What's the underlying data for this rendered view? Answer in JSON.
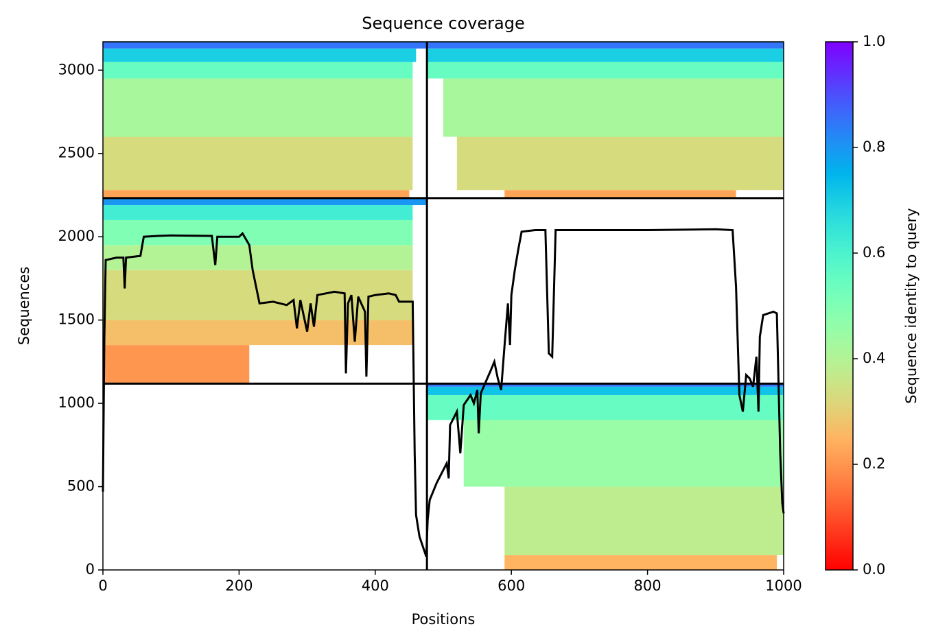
{
  "chart_data": {
    "type": "coverage",
    "title": "Sequence coverage",
    "xlabel": "Positions",
    "ylabel": "Sequences",
    "colorbar_label": "Sequence identity to query",
    "colormap": "rainbow_r",
    "xlim": [
      0,
      1000
    ],
    "ylim": [
      0,
      3170
    ],
    "xticks": [
      0,
      200,
      400,
      600,
      800,
      1000
    ],
    "yticks": [
      0,
      500,
      1000,
      1500,
      2000,
      2500,
      3000
    ],
    "clim": [
      0,
      1
    ],
    "cticks": [
      {
        "value": 0,
        "label": "0.0"
      },
      {
        "value": 0.2,
        "label": "0.2"
      },
      {
        "value": 0.4,
        "label": "0.4"
      },
      {
        "value": 0.6,
        "label": "0.6"
      },
      {
        "value": 0.8,
        "label": "0.8"
      },
      {
        "value": 1,
        "label": "1.0"
      }
    ],
    "dividers_x": [
      476
    ],
    "dividers_y": [
      1118,
      2232
    ],
    "bands": [
      {
        "x": [
          0,
          450
        ],
        "y": [
          2232,
          2280
        ],
        "identity": 0.22
      },
      {
        "x": [
          0,
          455
        ],
        "y": [
          2280,
          2600
        ],
        "identity": 0.33
      },
      {
        "x": [
          0,
          455
        ],
        "y": [
          2600,
          2950
        ],
        "identity": 0.42
      },
      {
        "x": [
          0,
          455
        ],
        "y": [
          2950,
          3050
        ],
        "identity": 0.55
      },
      {
        "x": [
          0,
          460
        ],
        "y": [
          3050,
          3130
        ],
        "identity": 0.7
      },
      {
        "x": [
          0,
          476
        ],
        "y": [
          3130,
          3170
        ],
        "identity": 0.85
      },
      {
        "x": [
          590,
          930
        ],
        "y": [
          2232,
          2280
        ],
        "identity": 0.22
      },
      {
        "x": [
          520,
          1000
        ],
        "y": [
          2280,
          2600
        ],
        "identity": 0.33
      },
      {
        "x": [
          500,
          1000
        ],
        "y": [
          2600,
          2950
        ],
        "identity": 0.42
      },
      {
        "x": [
          476,
          1000
        ],
        "y": [
          2950,
          3050
        ],
        "identity": 0.55
      },
      {
        "x": [
          476,
          1000
        ],
        "y": [
          3050,
          3130
        ],
        "identity": 0.7
      },
      {
        "x": [
          476,
          1000
        ],
        "y": [
          3130,
          3170
        ],
        "identity": 0.85
      },
      {
        "x": [
          0,
          215
        ],
        "y": [
          1118,
          1350
        ],
        "identity": 0.2
      },
      {
        "x": [
          0,
          455
        ],
        "y": [
          1350,
          1500
        ],
        "identity": 0.27
      },
      {
        "x": [
          0,
          455
        ],
        "y": [
          1500,
          1800
        ],
        "identity": 0.33
      },
      {
        "x": [
          0,
          455
        ],
        "y": [
          1800,
          1950
        ],
        "identity": 0.4
      },
      {
        "x": [
          0,
          455
        ],
        "y": [
          1950,
          2100
        ],
        "identity": 0.5
      },
      {
        "x": [
          0,
          455
        ],
        "y": [
          2100,
          2190
        ],
        "identity": 0.62
      },
      {
        "x": [
          0,
          476
        ],
        "y": [
          2190,
          2232
        ],
        "identity": 0.8
      },
      {
        "x": [
          590,
          990
        ],
        "y": [
          0,
          90
        ],
        "identity": 0.25
      },
      {
        "x": [
          590,
          1000
        ],
        "y": [
          90,
          500
        ],
        "identity": 0.38
      },
      {
        "x": [
          530,
          1000
        ],
        "y": [
          500,
          900
        ],
        "identity": 0.45
      },
      {
        "x": [
          476,
          1000
        ],
        "y": [
          900,
          1050
        ],
        "identity": 0.55
      },
      {
        "x": [
          476,
          1000
        ],
        "y": [
          1050,
          1100
        ],
        "identity": 0.72
      },
      {
        "x": [
          476,
          1000
        ],
        "y": [
          1100,
          1118
        ],
        "identity": 0.85
      }
    ],
    "coverage": {
      "color": "#000000",
      "x": [
        0,
        2,
        4,
        20,
        30,
        32,
        34,
        55,
        60,
        80,
        100,
        160,
        165,
        168,
        200,
        205,
        215,
        220,
        225,
        230,
        250,
        270,
        280,
        285,
        290,
        300,
        305,
        310,
        315,
        340,
        355,
        357,
        360,
        365,
        370,
        375,
        385,
        387,
        390,
        400,
        420,
        430,
        435,
        455,
        458,
        460,
        465,
        475,
        477,
        480,
        490,
        500,
        505,
        508,
        510,
        520,
        525,
        530,
        540,
        545,
        550,
        552,
        555,
        570,
        575,
        580,
        585,
        590,
        595,
        598,
        600,
        605,
        610,
        615,
        635,
        650,
        655,
        660,
        665,
        700,
        800,
        900,
        925,
        930,
        935,
        940,
        945,
        950,
        955,
        960,
        963,
        965,
        970,
        985,
        990,
        995,
        998,
        1000
      ],
      "values": [
        470,
        1380,
        1860,
        1875,
        1875,
        1690,
        1875,
        1885,
        2000,
        2005,
        2008,
        2005,
        1830,
        2000,
        2000,
        2020,
        1950,
        1800,
        1700,
        1600,
        1610,
        1590,
        1620,
        1450,
        1620,
        1430,
        1600,
        1460,
        1650,
        1670,
        1660,
        1180,
        1600,
        1650,
        1370,
        1640,
        1550,
        1160,
        1640,
        1650,
        1660,
        1650,
        1610,
        1610,
        700,
        330,
        200,
        80,
        300,
        420,
        520,
        600,
        640,
        550,
        870,
        950,
        700,
        990,
        1050,
        1000,
        1080,
        820,
        1060,
        1200,
        1250,
        1150,
        1080,
        1350,
        1600,
        1350,
        1650,
        1800,
        1920,
        2030,
        2040,
        2040,
        1300,
        1280,
        2040,
        2040,
        2040,
        2045,
        2040,
        1700,
        1050,
        950,
        1170,
        1150,
        1100,
        1280,
        950,
        1400,
        1530,
        1550,
        1540,
        700,
        400,
        340
      ]
    }
  }
}
